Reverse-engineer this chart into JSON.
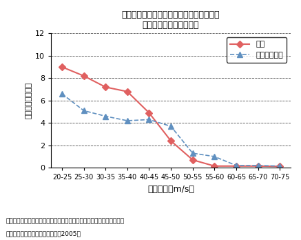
{
  "title_line1": "熱帯低気圧の強度別に示した熱帯低気圧の",
  "title_line2": "年平均発生数の頻度分布",
  "xlabel": "最大風速（m/s）",
  "ylabel_parts": [
    "（回）",
    "発生数",
    "均年"
  ],
  "ylabel_full": "（回）発生数均年",
  "categories": [
    "20-25",
    "25-30",
    "30-35",
    "35-40",
    "40-45",
    "45-50",
    "50-55",
    "55-60",
    "60-65",
    "65-70",
    "70-75"
  ],
  "present_values": [
    9.0,
    8.2,
    7.2,
    6.8,
    4.9,
    2.4,
    0.7,
    0.15,
    0.15,
    0.15,
    0.12
  ],
  "future_values": [
    6.6,
    5.1,
    4.6,
    4.2,
    4.3,
    3.7,
    1.3,
    1.0,
    0.2,
    0.2,
    0.15
  ],
  "present_color": "#e06060",
  "future_color": "#6090c0",
  "ylim": [
    0,
    12
  ],
  "yticks": [
    0,
    2,
    4,
    6,
    8,
    10,
    12
  ],
  "legend_present": "現在",
  "legend_future": "２１世紀末頃",
  "note_line1": "（注）実線は現在気候再現実験、破線は温暖化予測実験の結果を示す。",
  "note_line2": "資料）気象庁「異常気象レポート2005」"
}
